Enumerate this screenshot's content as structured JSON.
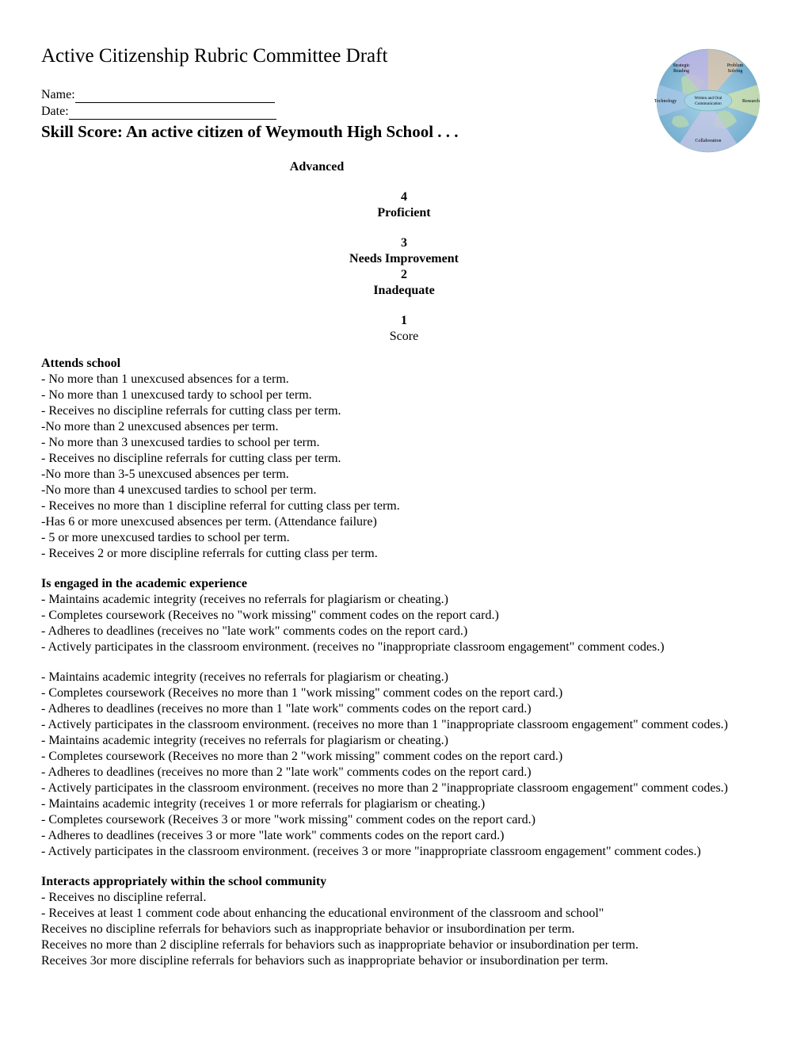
{
  "header": {
    "title": "Active Citizenship Rubric Committee Draft",
    "name_label": "Name:",
    "date_label": "Date:",
    "skill_heading": "Skill Score:  An active citizen of Weymouth High School . . ."
  },
  "diagram": {
    "globe_fill_a": "#b7d6b1",
    "globe_fill_b": "#8fbfe6",
    "globe_center": "#a8d4e8",
    "segments": [
      {
        "label1": "Strategic",
        "label2": "Reading",
        "color": "#c7b7e6"
      },
      {
        "label1": "Problem",
        "label2": "Solving",
        "color": "#e6c7a8"
      },
      {
        "label1": "Research",
        "label2": "",
        "color": "#d6e6a8"
      },
      {
        "label1": "Collaboration",
        "label2": "",
        "color": "#c7c7e6"
      },
      {
        "label1": "Technology",
        "label2": "",
        "color": "#a8c7e6"
      }
    ],
    "center_label1": "Written and Oral",
    "center_label2": "Communication"
  },
  "levels": {
    "advanced": "Advanced",
    "four": "4",
    "proficient": "Proficient",
    "three": "3",
    "needs_improvement": "Needs Improvement",
    "two": "2",
    "inadequate": "Inadequate",
    "one": "1",
    "score": "Score"
  },
  "sections": {
    "attends": {
      "title": "Attends school",
      "items": [
        "-  No more than 1 unexcused absences for a term.",
        "- No more than 1 unexcused tardy to school per term.",
        "- Receives no discipline referrals for cutting class per term.",
        "-No more than 2 unexcused absences per term.",
        "- No more than 3 unexcused tardies to school per term.",
        "- Receives no discipline referrals for cutting class per term.",
        "-No more than 3-5 unexcused absences per term.",
        "-No more than 4 unexcused tardies to school per term.",
        "- Receives no more than 1 discipline referral for cutting class per term.",
        "-Has 6 or more unexcused absences per term. (Attendance failure)",
        "- 5 or more unexcused tardies to school per term.",
        "- Receives 2 or more discipline referrals for cutting class per term."
      ]
    },
    "engaged": {
      "title": "Is engaged in the  academic experience",
      "g1": [
        "- Maintains academic integrity (receives no referrals for plagiarism or cheating.)",
        "- Completes coursework (Receives no \"work missing\" comment codes on the report card.)",
        "- Adheres to deadlines (receives no \"late work\" comments codes on the report card.)",
        "- Actively participates in the classroom environment. (receives no \"inappropriate classroom engagement\" comment codes.)"
      ],
      "g2": [
        "- Maintains academic integrity (receives no referrals for plagiarism or cheating.)",
        "- Completes coursework (Receives no more than 1 \"work missing\" comment codes on the report card.)",
        "- Adheres to deadlines (receives no more than 1 \"late work\" comments codes on the report card.)",
        "- Actively participates in the classroom environment. (receives no more than 1 \"inappropriate classroom engagement\" comment codes.)"
      ],
      "g3": [
        "- Maintains academic integrity (receives no referrals for plagiarism or cheating.)",
        "- Completes coursework (Receives no more than 2 \"work missing\" comment codes on the report card.)",
        "- Adheres to deadlines (receives no more than 2 \"late work\" comments codes on the report card.)",
        "- Actively participates in the classroom environment. (receives no more than 2 \"inappropriate classroom engagement\" comment codes.)"
      ],
      "g4": [
        "- Maintains academic integrity (receives 1 or more referrals for plagiarism or cheating.)",
        "- Completes coursework (Receives 3 or more \"work missing\" comment codes on the report card.)",
        "- Adheres to deadlines (receives 3 or more \"late work\" comments codes on the report card.)",
        "- Actively participates in the classroom environment. (receives 3 or more \"inappropriate classroom engagement\" comment codes.)"
      ]
    },
    "interacts": {
      "title": "Interacts appropriately within the school community",
      "items": [
        "- Receives no discipline referral.",
        "- Receives at least 1 comment code about  enhancing the educational environment of the classroom and school\"",
        "Receives no discipline referrals for behaviors such as inappropriate behavior or insubordination per term.",
        "Receives no more than 2 discipline referrals for behaviors such as inappropriate behavior or insubordination per term.",
        "Receives 3or more discipline referrals for behaviors such as inappropriate behavior or insubordination per term."
      ]
    }
  }
}
